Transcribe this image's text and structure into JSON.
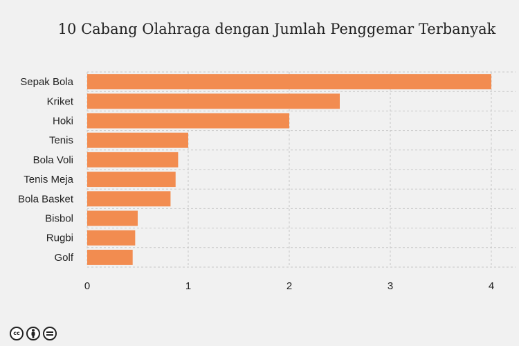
{
  "chart_data": {
    "type": "bar",
    "orientation": "horizontal",
    "title": "10 Cabang Olahraga dengan Jumlah Penggemar Terbanyak",
    "categories": [
      "Sepak Bola",
      "Kriket",
      "Hoki",
      "Tenis",
      "Bola Voli",
      "Tenis Meja",
      "Bola Basket",
      "Bisbol",
      "Rugbi",
      "Golf"
    ],
    "values": [
      4,
      2.5,
      2,
      1,
      0.9,
      0.875,
      0.825,
      0.5,
      0.475,
      0.45
    ],
    "xlim": [
      0,
      4
    ],
    "xticks": [
      "0",
      "1",
      "2",
      "3",
      "4"
    ],
    "xlabel": "",
    "ylabel": "",
    "grid": true,
    "bar_color": "#f28c50",
    "grid_color": "#c8c8c8"
  },
  "license_icons": [
    "cc-icon",
    "by-icon",
    "nd-icon"
  ]
}
